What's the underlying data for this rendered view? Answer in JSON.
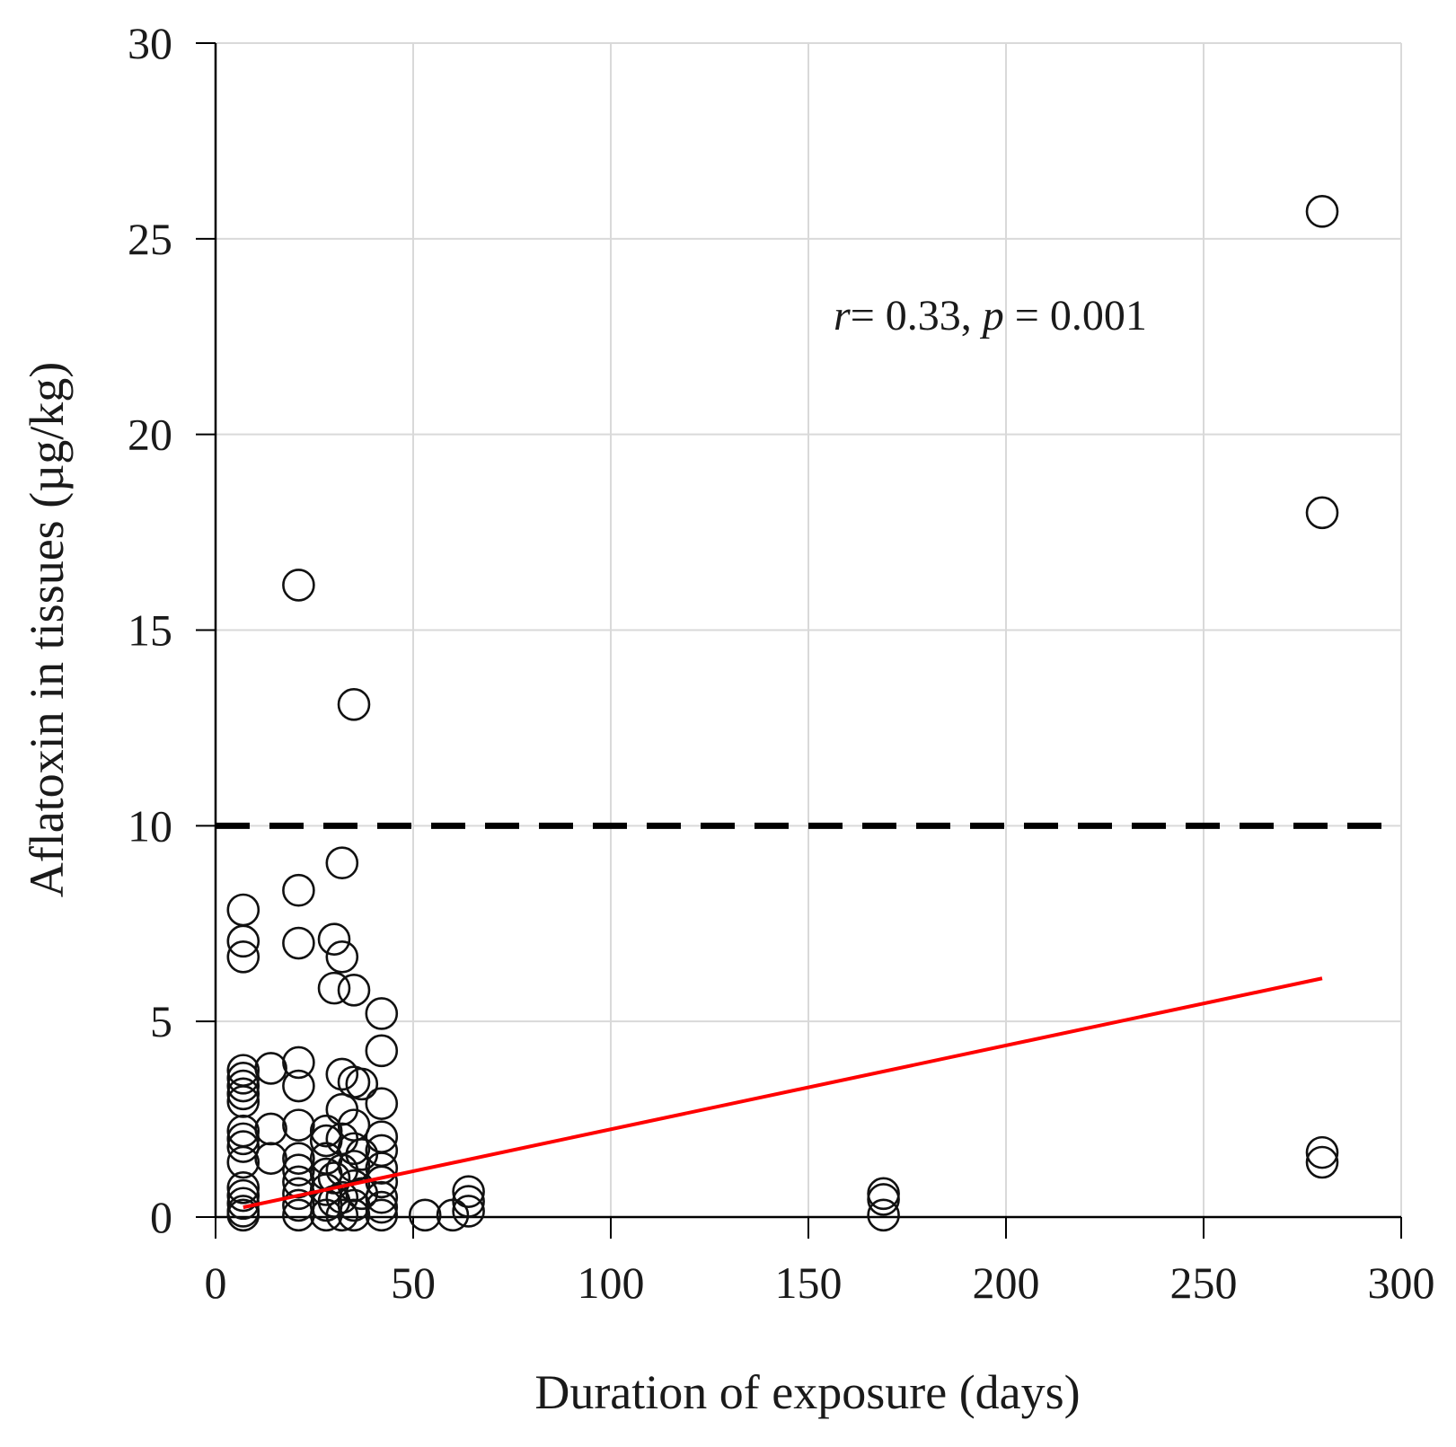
{
  "chart_data": {
    "type": "scatter",
    "xlabel": "Duration of exposure (days)",
    "ylabel": "Aflatoxin in tissues (µg/kg)",
    "xlim": [
      0,
      300
    ],
    "ylim": [
      0,
      30
    ],
    "x_ticks": [
      0,
      50,
      100,
      150,
      200,
      250,
      300
    ],
    "y_ticks": [
      0,
      5,
      10,
      15,
      20,
      25,
      30
    ],
    "grid": true,
    "colors": {
      "points": "#111111",
      "regression": "#ff0000",
      "grid": "#d9d9d9",
      "threshold": "#000000"
    },
    "threshold": {
      "y": 10,
      "style": "dashed"
    },
    "regression": {
      "x": [
        7,
        280
      ],
      "y": [
        0.25,
        6.1
      ]
    },
    "annotation": {
      "r_symbol": "r",
      "r_text": "= 0.33, ",
      "p_symbol": "p",
      "p_text": " = 0.001"
    },
    "points": [
      [
        7,
        7.85
      ],
      [
        7,
        7.05
      ],
      [
        7,
        6.65
      ],
      [
        7,
        3.75
      ],
      [
        7,
        3.55
      ],
      [
        7,
        3.35
      ],
      [
        7,
        3.15
      ],
      [
        7,
        2.95
      ],
      [
        7,
        2.2
      ],
      [
        7,
        2.0
      ],
      [
        7,
        1.8
      ],
      [
        7,
        1.4
      ],
      [
        7,
        0.75
      ],
      [
        7,
        0.55
      ],
      [
        7,
        0.35
      ],
      [
        7,
        0.15
      ],
      [
        7,
        0.05
      ],
      [
        14,
        3.8
      ],
      [
        14,
        2.25
      ],
      [
        14,
        1.5
      ],
      [
        21,
        16.15
      ],
      [
        21,
        8.35
      ],
      [
        21,
        7.0
      ],
      [
        21,
        3.95
      ],
      [
        21,
        3.35
      ],
      [
        21,
        2.35
      ],
      [
        21,
        1.5
      ],
      [
        21,
        1.2
      ],
      [
        21,
        0.9
      ],
      [
        21,
        0.6
      ],
      [
        21,
        0.3
      ],
      [
        21,
        0.05
      ],
      [
        28,
        2.2
      ],
      [
        28,
        1.95
      ],
      [
        28,
        1.5
      ],
      [
        28,
        1.1
      ],
      [
        28,
        0.7
      ],
      [
        28,
        0.3
      ],
      [
        28,
        0.05
      ],
      [
        30,
        7.1
      ],
      [
        30,
        5.85
      ],
      [
        30,
        1.0
      ],
      [
        30,
        0.4
      ],
      [
        32,
        9.05
      ],
      [
        32,
        6.65
      ],
      [
        32,
        3.65
      ],
      [
        32,
        2.75
      ],
      [
        32,
        2.0
      ],
      [
        32,
        1.2
      ],
      [
        32,
        0.5
      ],
      [
        32,
        0.05
      ],
      [
        35,
        13.1
      ],
      [
        35,
        5.8
      ],
      [
        35,
        3.45
      ],
      [
        35,
        2.35
      ],
      [
        35,
        1.75
      ],
      [
        35,
        1.3
      ],
      [
        35,
        0.8
      ],
      [
        35,
        0.3
      ],
      [
        35,
        0.05
      ],
      [
        37,
        3.4
      ],
      [
        37,
        1.6
      ],
      [
        37,
        0.6
      ],
      [
        42,
        5.2
      ],
      [
        42,
        4.25
      ],
      [
        42,
        2.9
      ],
      [
        42,
        2.05
      ],
      [
        42,
        1.7
      ],
      [
        42,
        1.25
      ],
      [
        42,
        0.9
      ],
      [
        42,
        0.5
      ],
      [
        42,
        0.25
      ],
      [
        42,
        0.05
      ],
      [
        53,
        0.05
      ],
      [
        60,
        0.05
      ],
      [
        64,
        0.65
      ],
      [
        64,
        0.4
      ],
      [
        64,
        0.15
      ],
      [
        169,
        0.6
      ],
      [
        169,
        0.45
      ],
      [
        169,
        0.05
      ],
      [
        280,
        25.7
      ],
      [
        280,
        18.0
      ],
      [
        280,
        1.65
      ],
      [
        280,
        1.4
      ]
    ]
  }
}
